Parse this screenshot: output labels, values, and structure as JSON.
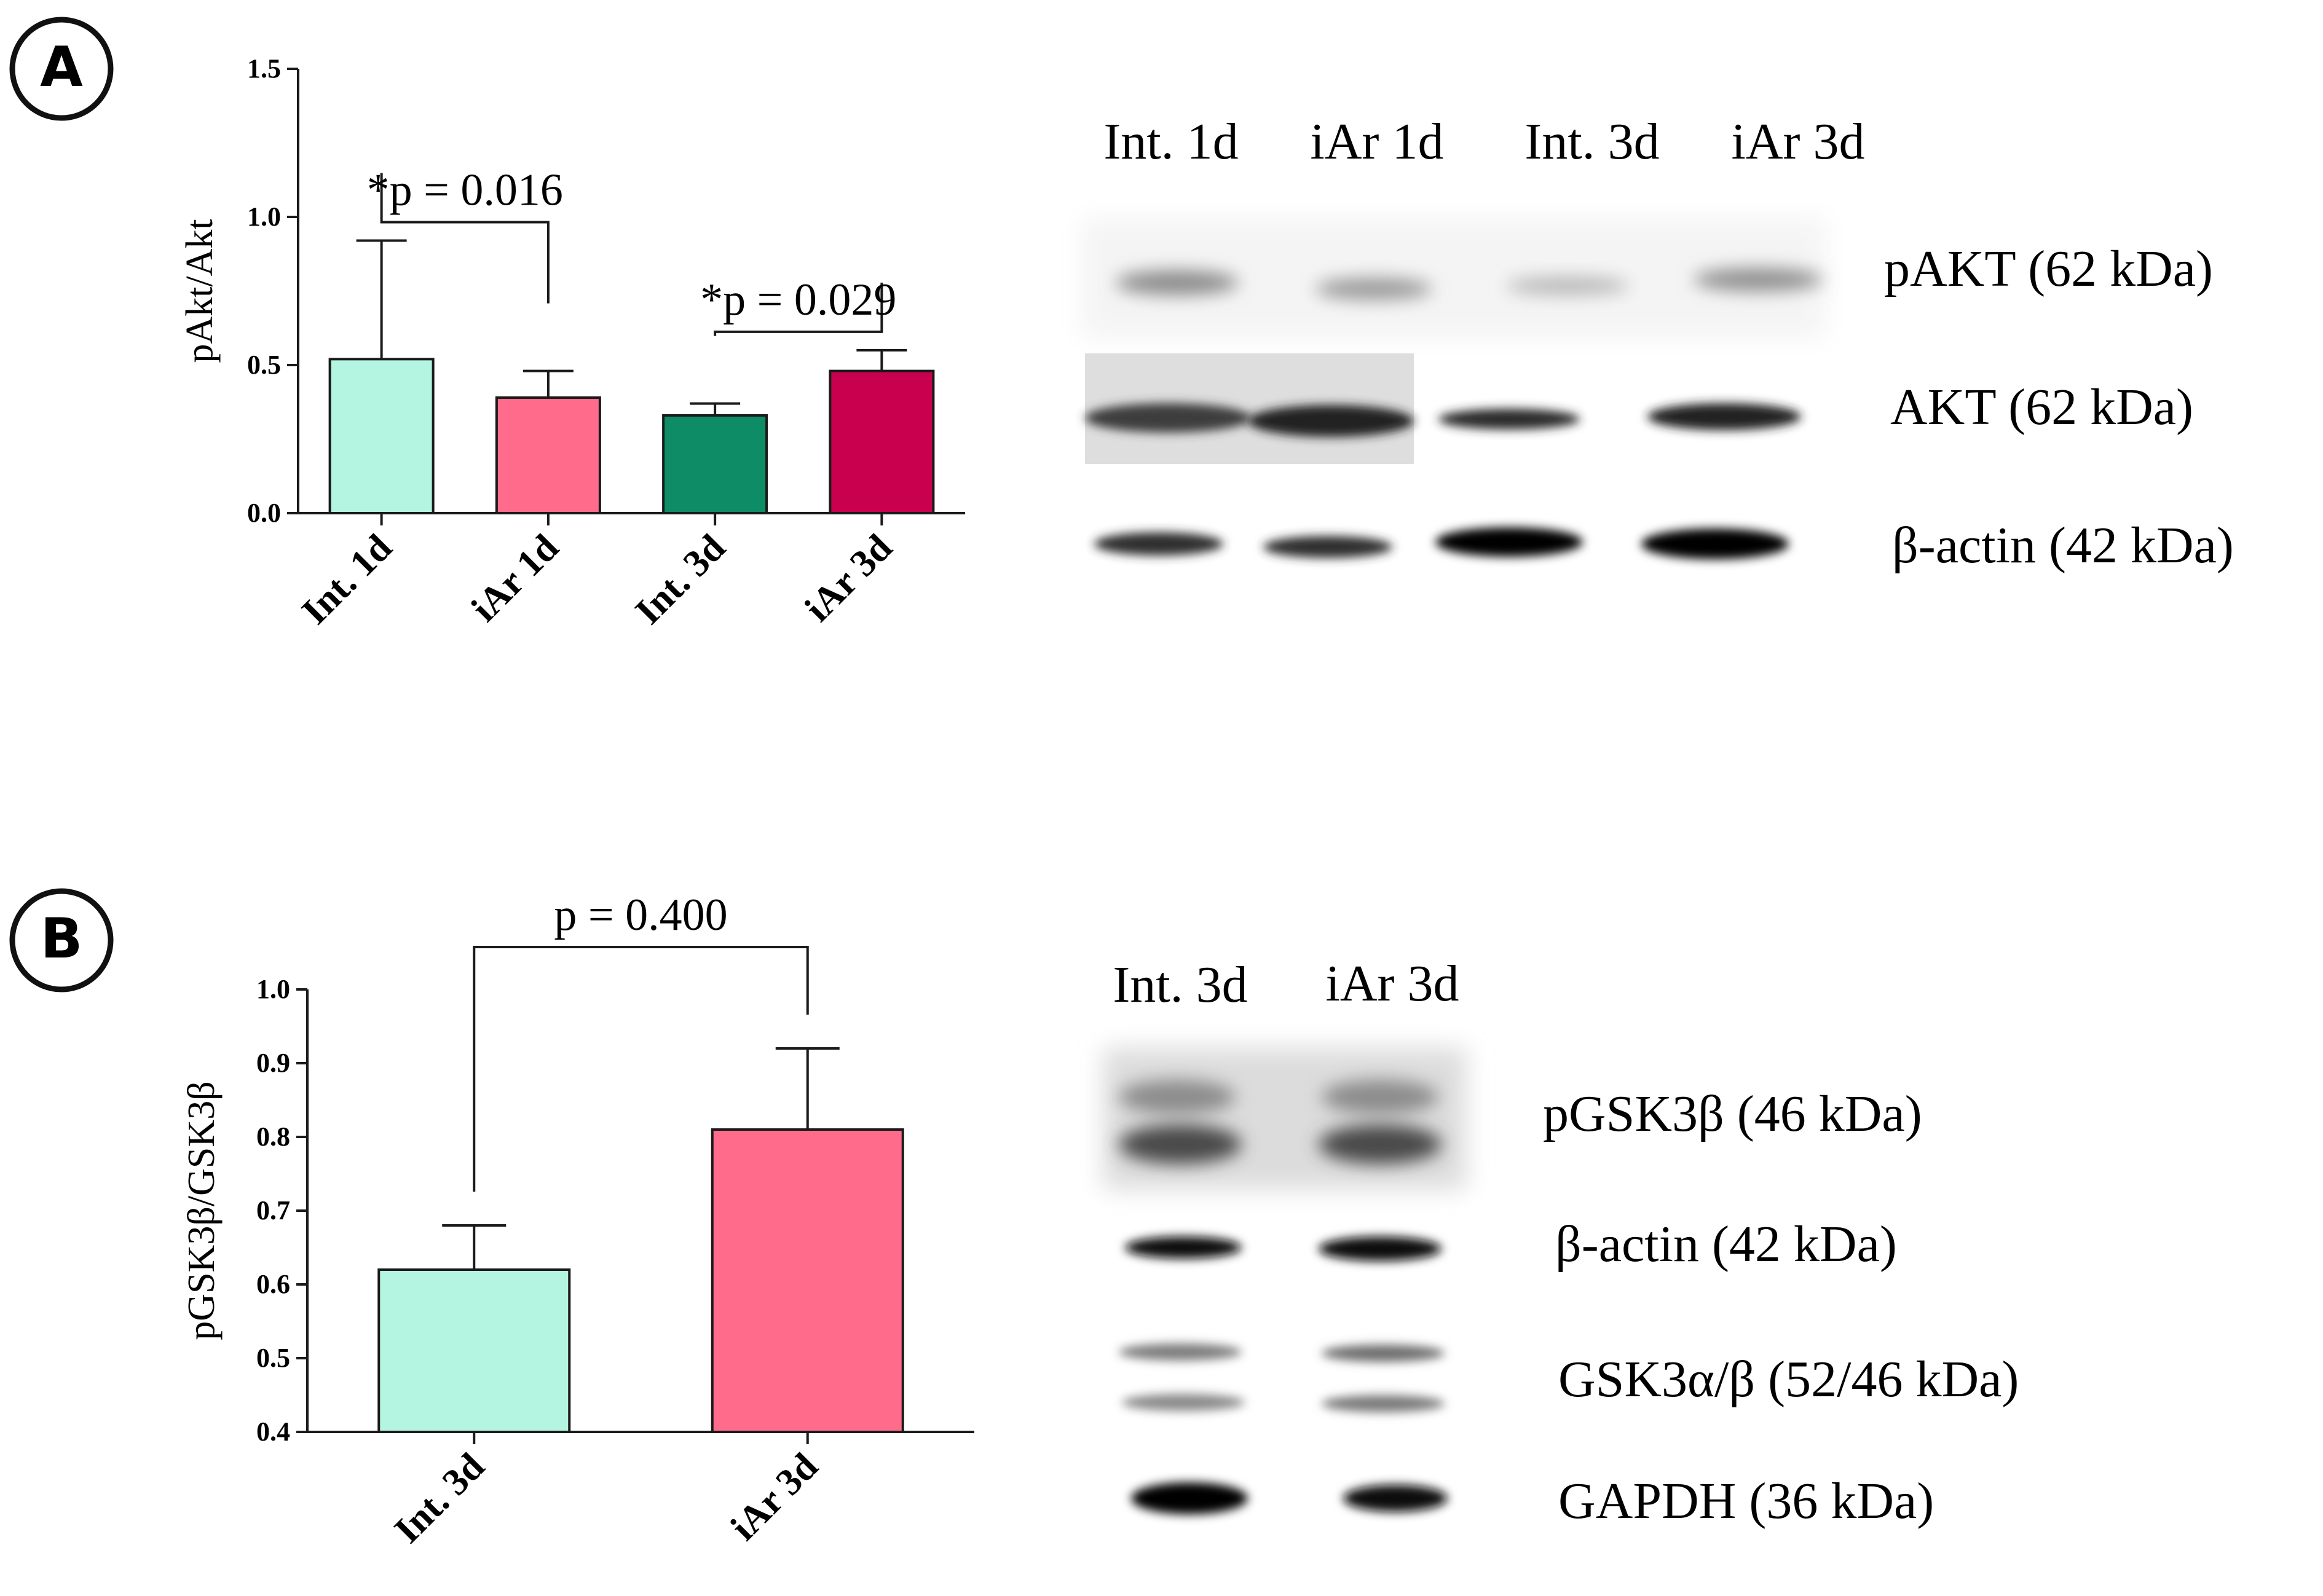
{
  "panels": {
    "A": {
      "letter": "A",
      "chart_data": {
        "type": "bar",
        "categories": [
          "Int. 1d",
          "iAr 1d",
          "Int. 3d",
          "iAr 3d"
        ],
        "values": [
          0.52,
          0.39,
          0.33,
          0.48
        ],
        "errors": [
          0.4,
          0.09,
          0.04,
          0.07
        ],
        "colors": [
          "#b3f5e0",
          "#ff6b8a",
          "#0e8c66",
          "#c8004e"
        ],
        "ylabel": "pAkt/Akt",
        "ylim": [
          0,
          1.5
        ],
        "yticks": [
          "0.0",
          "0.5",
          "1.0",
          "1.5"
        ],
        "ytick_values": [
          0,
          0.5,
          1.0,
          1.5
        ],
        "annotations": [
          {
            "text": "*p = 0.016",
            "from": 0,
            "to": 1
          },
          {
            "text": "*p = 0.029",
            "from": 2,
            "to": 3
          }
        ]
      },
      "blot": {
        "lanes": [
          "Int. 1d",
          "iAr 1d",
          "Int. 3d",
          "iAr 3d"
        ],
        "proteins": [
          "pAKT (62 kDa)",
          "AKT (62 kDa)",
          "β-actin (42 kDa)"
        ]
      }
    },
    "B": {
      "letter": "B",
      "chart_data": {
        "type": "bar",
        "categories": [
          "Int. 3d",
          "iAr 3d"
        ],
        "values": [
          0.62,
          0.81
        ],
        "errors": [
          0.06,
          0.11
        ],
        "colors": [
          "#b3f5e0",
          "#ff6b8a"
        ],
        "ylabel": "pGSK3β/GSK3β",
        "ylim": [
          0.4,
          1.0
        ],
        "yticks": [
          "0.4",
          "0.5",
          "0.6",
          "0.7",
          "0.8",
          "0.9",
          "1.0"
        ],
        "ytick_values": [
          0.4,
          0.5,
          0.6,
          0.7,
          0.8,
          0.9,
          1.0
        ],
        "annotations": [
          {
            "text": "p = 0.400",
            "from": 0,
            "to": 1
          }
        ]
      },
      "blot": {
        "lanes": [
          "Int. 3d",
          "iAr 3d"
        ],
        "proteins": [
          "pGSK3β (46 kDa)",
          "β-actin (42 kDa)",
          "GSK3α/β (52/46 kDa)",
          "GAPDH (36 kDa)"
        ]
      }
    }
  }
}
